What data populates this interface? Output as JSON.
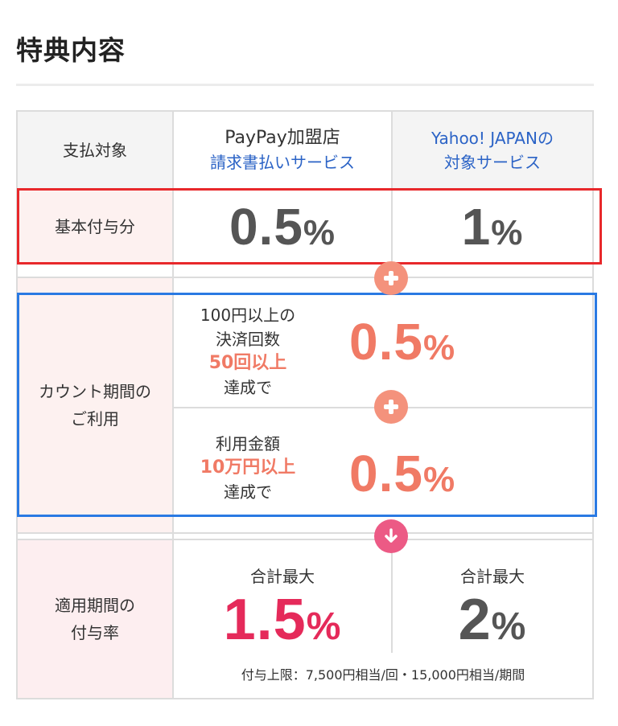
{
  "title": "特典内容",
  "header": {
    "label": "支払対象",
    "col1_main": "PayPay加盟店",
    "col1_sub": "請求書払いサービス",
    "col2_line1": "Yahoo! JAPANの",
    "col2_line2": "対象サービス"
  },
  "basic": {
    "label": "基本付与分",
    "col1_num": "0.5",
    "col1_pct": "%",
    "col2_num": "1",
    "col2_pct": "%"
  },
  "count": {
    "label_line1": "カウント期間の",
    "label_line2": "ご利用",
    "cond1": {
      "line1": "100円以上の",
      "line2": "決済回数",
      "emph": "50回以上",
      "line4": "達成で",
      "num": "0.5",
      "pct": "%"
    },
    "cond2": {
      "line1": "利用金額",
      "emph": "10万円以上",
      "line3": "達成で",
      "num": "0.5",
      "pct": "%"
    }
  },
  "total": {
    "label_line1": "適用期間の",
    "label_line2": "付与率",
    "col1_caption": "合計最大",
    "col1_num": "1.5",
    "col1_pct": "%",
    "col2_caption": "合計最大",
    "col2_num": "2",
    "col2_pct": "%",
    "note": "付与上限：7,500円相当/回・15,000円相当/期間"
  },
  "colors": {
    "accent_red": "#e52a5a",
    "accent_salmon": "#f07a65",
    "link_blue": "#2b63c6",
    "box_red": "#e8282b",
    "box_blue": "#2a7ae3"
  },
  "icons": [
    "plus-icon",
    "plus-icon",
    "arrow-down-icon"
  ]
}
